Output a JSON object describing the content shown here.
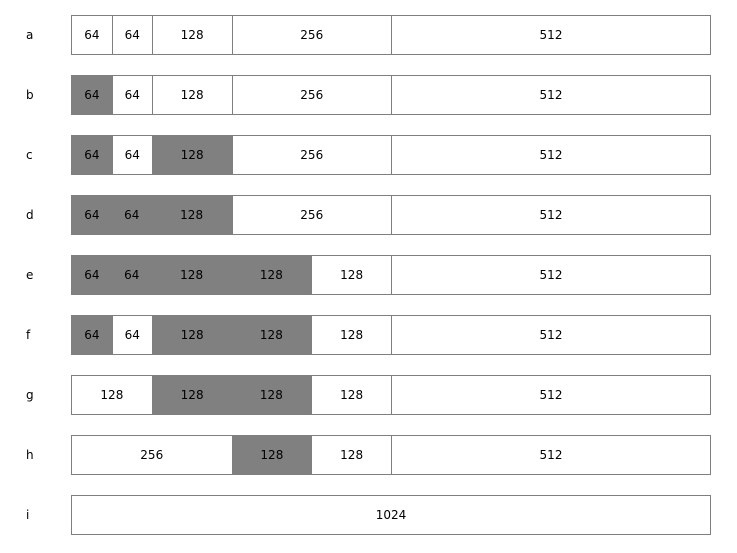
{
  "colors": {
    "allocated": "#808080",
    "free": "#ffffff",
    "border": "#7f7f7f"
  },
  "total": 1024,
  "rows": [
    {
      "label": "a",
      "blocks": [
        {
          "size": 64,
          "text": "64",
          "allocated": false
        },
        {
          "size": 64,
          "text": "64",
          "allocated": false
        },
        {
          "size": 128,
          "text": "128",
          "allocated": false
        },
        {
          "size": 256,
          "text": "256",
          "allocated": false
        },
        {
          "size": 512,
          "text": "512",
          "allocated": false
        }
      ]
    },
    {
      "label": "b",
      "blocks": [
        {
          "size": 64,
          "text": "64",
          "allocated": true
        },
        {
          "size": 64,
          "text": "64",
          "allocated": false
        },
        {
          "size": 128,
          "text": "128",
          "allocated": false
        },
        {
          "size": 256,
          "text": "256",
          "allocated": false
        },
        {
          "size": 512,
          "text": "512",
          "allocated": false
        }
      ]
    },
    {
      "label": "c",
      "blocks": [
        {
          "size": 64,
          "text": "64",
          "allocated": true
        },
        {
          "size": 64,
          "text": "64",
          "allocated": false
        },
        {
          "size": 128,
          "text": "128",
          "allocated": true
        },
        {
          "size": 256,
          "text": "256",
          "allocated": false
        },
        {
          "size": 512,
          "text": "512",
          "allocated": false
        }
      ]
    },
    {
      "label": "d",
      "blocks": [
        {
          "size": 64,
          "text": "64",
          "allocated": true
        },
        {
          "size": 64,
          "text": "64",
          "allocated": true
        },
        {
          "size": 128,
          "text": "128",
          "allocated": true
        },
        {
          "size": 256,
          "text": "256",
          "allocated": false
        },
        {
          "size": 512,
          "text": "512",
          "allocated": false
        }
      ]
    },
    {
      "label": "e",
      "blocks": [
        {
          "size": 64,
          "text": "64",
          "allocated": true
        },
        {
          "size": 64,
          "text": "64",
          "allocated": true
        },
        {
          "size": 128,
          "text": "128",
          "allocated": true
        },
        {
          "size": 128,
          "text": "128",
          "allocated": true
        },
        {
          "size": 128,
          "text": "128",
          "allocated": false
        },
        {
          "size": 512,
          "text": "512",
          "allocated": false
        }
      ]
    },
    {
      "label": "f",
      "blocks": [
        {
          "size": 64,
          "text": "64",
          "allocated": true
        },
        {
          "size": 64,
          "text": "64",
          "allocated": false
        },
        {
          "size": 128,
          "text": "128",
          "allocated": true
        },
        {
          "size": 128,
          "text": "128",
          "allocated": true
        },
        {
          "size": 128,
          "text": "128",
          "allocated": false
        },
        {
          "size": 512,
          "text": "512",
          "allocated": false
        }
      ]
    },
    {
      "label": "g",
      "blocks": [
        {
          "size": 128,
          "text": "128",
          "allocated": false
        },
        {
          "size": 128,
          "text": "128",
          "allocated": true
        },
        {
          "size": 128,
          "text": "128",
          "allocated": true
        },
        {
          "size": 128,
          "text": "128",
          "allocated": false
        },
        {
          "size": 512,
          "text": "512",
          "allocated": false
        }
      ]
    },
    {
      "label": "h",
      "blocks": [
        {
          "size": 256,
          "text": "256",
          "allocated": false
        },
        {
          "size": 128,
          "text": "128",
          "allocated": true
        },
        {
          "size": 128,
          "text": "128",
          "allocated": false
        },
        {
          "size": 512,
          "text": "512",
          "allocated": false
        }
      ]
    },
    {
      "label": "i",
      "blocks": [
        {
          "size": 1024,
          "text": "1024",
          "allocated": false
        }
      ]
    }
  ]
}
